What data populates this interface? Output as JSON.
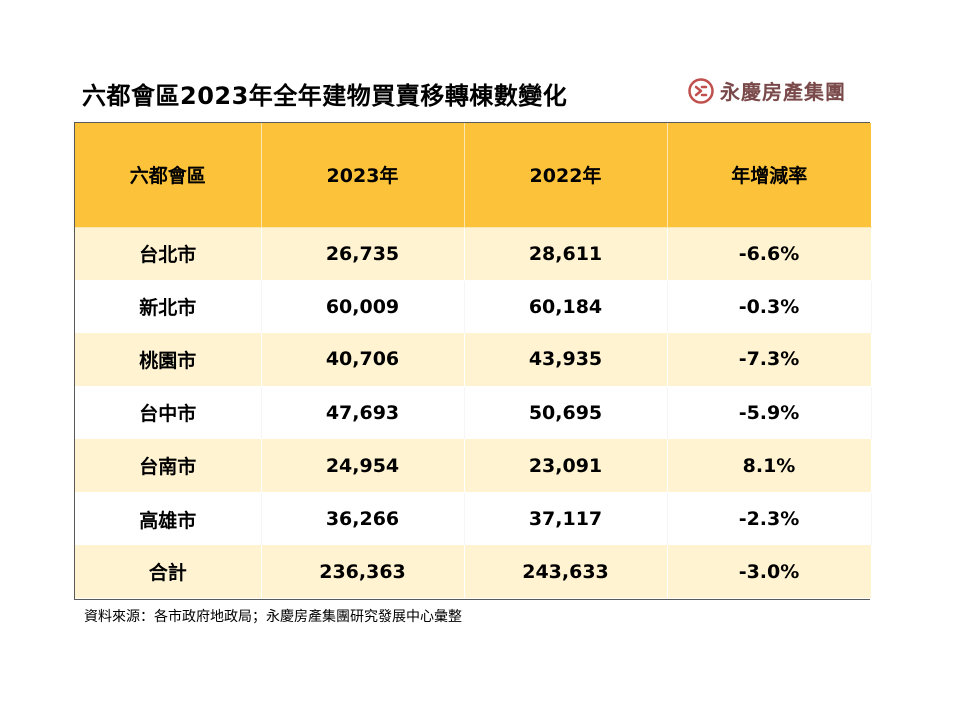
{
  "title": "六都會區2023年全年建物買賣移轉棟數變化",
  "logo": {
    "text": "永慶房產集團",
    "icon": "yungching-logo-icon",
    "color": "#c0504d"
  },
  "table": {
    "headers": [
      "六都會區",
      "2023年",
      "2022年",
      "年增減率"
    ],
    "rows": [
      {
        "city": "台北市",
        "y2023": "26,735",
        "y2022": "28,611",
        "rate": "-6.6%"
      },
      {
        "city": "新北市",
        "y2023": "60,009",
        "y2022": "60,184",
        "rate": "-0.3%"
      },
      {
        "city": "桃園市",
        "y2023": "40,706",
        "y2022": "43,935",
        "rate": "-7.3%"
      },
      {
        "city": "台中市",
        "y2023": "47,693",
        "y2022": "50,695",
        "rate": "-5.9%"
      },
      {
        "city": "台南市",
        "y2023": "24,954",
        "y2022": "23,091",
        "rate": "8.1%"
      },
      {
        "city": "高雄市",
        "y2023": "36,266",
        "y2022": "37,117",
        "rate": "-2.3%"
      },
      {
        "city": "合計",
        "y2023": "236,363",
        "y2022": "243,633",
        "rate": "-3.0%"
      }
    ],
    "colors": {
      "header": "#fcc33a",
      "stripe": "#fff3d2"
    }
  },
  "source": "資料來源：各市政府地政局；永慶房產集團研究發展中心彙整"
}
